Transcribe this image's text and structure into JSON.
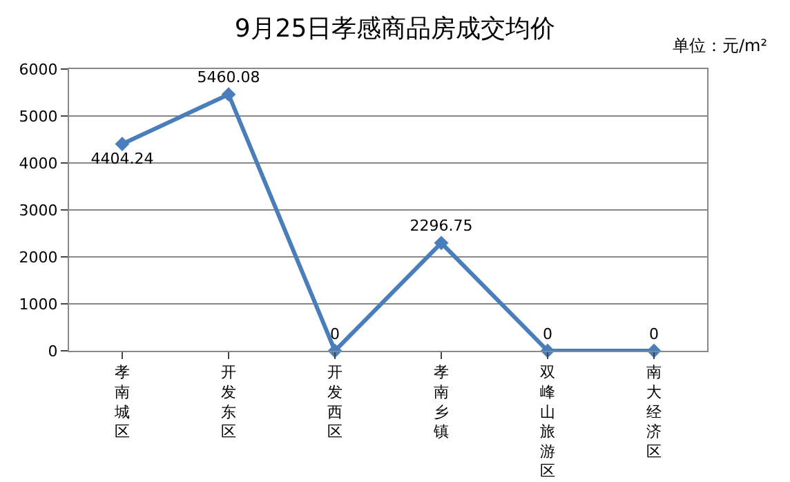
{
  "chart_data": {
    "type": "line",
    "title": "9月25日孝感商品房成交均价",
    "annotations": [
      "单位：元/m²"
    ],
    "categories": [
      "孝南城区",
      "开发东区",
      "开发西区",
      "孝南乡镇",
      "双峰山旅游区",
      "南大经济区"
    ],
    "series": [
      {
        "color": "#4a7ebb",
        "values": [
          4404.24,
          5460.08,
          0,
          2296.75,
          0,
          0
        ]
      }
    ],
    "ylim": [
      0,
      6000
    ],
    "yticks": [
      0,
      1000,
      2000,
      3000,
      4000,
      5000,
      6000
    ],
    "grid": "y",
    "marker": "diamond",
    "line_style": "solid",
    "data_labels": true
  }
}
